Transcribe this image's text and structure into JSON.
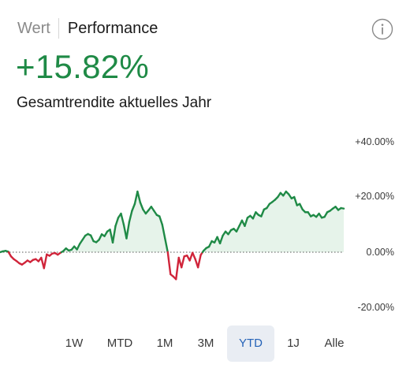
{
  "header": {
    "tabs": [
      {
        "label": "Wert",
        "active": false
      },
      {
        "label": "Performance",
        "active": true
      }
    ],
    "info_icon": "info-circle-icon"
  },
  "summary": {
    "value": "+15.82%",
    "label": "Gesamtrendite aktuelles Jahr"
  },
  "colors": {
    "positive": "#1f8a46",
    "negative": "#d0243a",
    "fill": "#e6f3ea",
    "selected_range_bg": "#e9edf3",
    "selected_range_text": "#2563b8"
  },
  "chart_data": {
    "type": "area",
    "y_axis_ticks": [
      "+40.00%",
      "+20.00%",
      "0.00%",
      "-20.00%"
    ],
    "ylim": [
      -20,
      40
    ],
    "baseline": 0,
    "grid": false,
    "values": [
      0.0,
      0.3,
      0.5,
      0.2,
      -1.5,
      -2.5,
      -3.2,
      -4.0,
      -4.5,
      -3.8,
      -3.0,
      -3.6,
      -2.8,
      -2.5,
      -3.3,
      -2.0,
      -5.8,
      -0.8,
      -1.3,
      -0.5,
      -0.3,
      -0.9,
      -0.2,
      0.4,
      1.4,
      0.6,
      0.9,
      2.1,
      1.0,
      3.0,
      4.5,
      6.0,
      6.6,
      6.1,
      4.0,
      3.6,
      4.5,
      6.5,
      5.8,
      7.5,
      8.2,
      3.5,
      9.5,
      12.5,
      14.0,
      10.0,
      5.0,
      11.0,
      15.0,
      17.5,
      22.0,
      18.0,
      15.5,
      14.0,
      15.2,
      16.5,
      15.0,
      13.5,
      13.0,
      10.0,
      5.0,
      0.0,
      -8.0,
      -8.8,
      -9.8,
      -2.0,
      -5.5,
      -1.5,
      -1.2,
      -3.0,
      -0.2,
      -2.5,
      -5.5,
      -1.0,
      0.5,
      1.5,
      2.0,
      4.0,
      3.5,
      5.5,
      3.2,
      6.0,
      7.5,
      6.5,
      8.0,
      8.5,
      7.5,
      9.5,
      11.5,
      9.5,
      12.5,
      13.2,
      12.2,
      14.5,
      13.5,
      13.0,
      15.5,
      16.0,
      17.5,
      18.2,
      19.0,
      20.0,
      21.5,
      20.5,
      22.0,
      21.0,
      19.5,
      20.0,
      17.0,
      17.5,
      15.5,
      14.5,
      14.5,
      13.0,
      13.5,
      12.8,
      14.0,
      12.5,
      12.8,
      14.5,
      15.0,
      15.8,
      16.5,
      15.3,
      16.0,
      15.82
    ]
  },
  "ranges": [
    {
      "label": "1W",
      "selected": false
    },
    {
      "label": "MTD",
      "selected": false
    },
    {
      "label": "1M",
      "selected": false
    },
    {
      "label": "3M",
      "selected": false
    },
    {
      "label": "YTD",
      "selected": true
    },
    {
      "label": "1J",
      "selected": false
    },
    {
      "label": "Alle",
      "selected": false
    }
  ]
}
